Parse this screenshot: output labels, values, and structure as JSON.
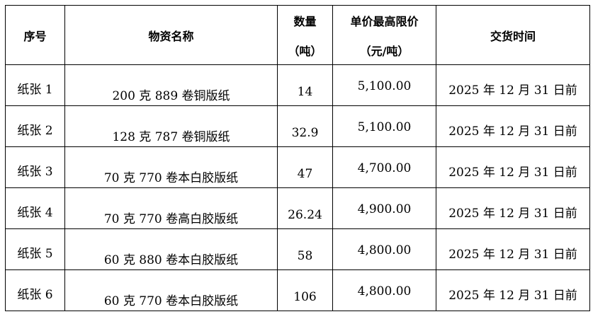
{
  "headers": {
    "no": "序号",
    "name": "物资名称",
    "qty": "数量",
    "qty_unit": "（吨）",
    "price": "单价最高限价",
    "price_unit": "（元/吨）",
    "delivery": "交货时间"
  },
  "rows": [
    {
      "no": "纸张 1",
      "name": "200 克 889 卷铜版纸",
      "qty": "14",
      "price": "5,100.00",
      "delivery": "2025 年 12 月 31 日前"
    },
    {
      "no": "纸张 2",
      "name": "128 克 787 卷铜版纸",
      "qty": "32.9",
      "price": "5,100.00",
      "delivery": "2025 年 12 月 31 日前"
    },
    {
      "no": "纸张 3",
      "name": "70 克 770 卷本白胶版纸",
      "qty": "47",
      "price": "4,700.00",
      "delivery": "2025 年 12 月 31 日前"
    },
    {
      "no": "纸张 4",
      "name": "70 克 770 卷高白胶版纸",
      "qty": "26.24",
      "price": "4,900.00",
      "delivery": "2025 年 12 月 31 日前"
    },
    {
      "no": "纸张 5",
      "name": "60 克 880 卷本白胶版纸",
      "qty": "58",
      "price": "4,800.00",
      "delivery": "2025 年 12 月 31 日前"
    },
    {
      "no": "纸张 6",
      "name": "60 克 770 卷本白胶版纸",
      "qty": "106",
      "price": "4,800.00",
      "delivery": "2025 年 12 月 31 日前"
    }
  ]
}
